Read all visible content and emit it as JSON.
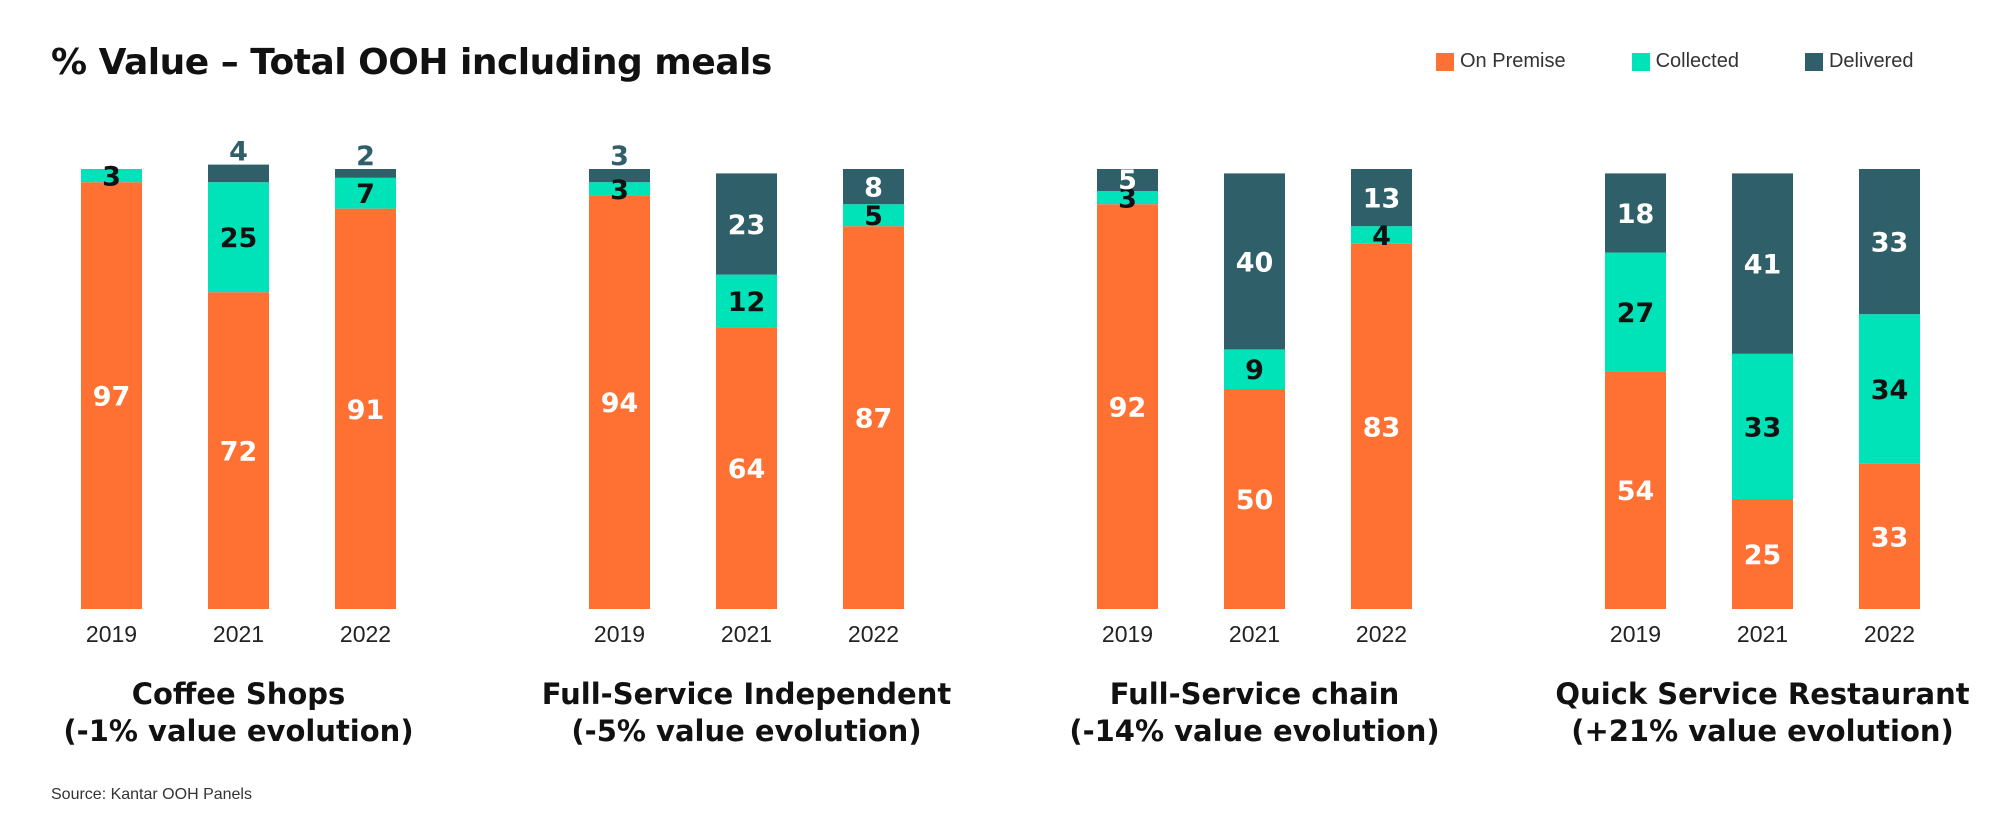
{
  "title": "% Value – Total OOH including meals",
  "source": "Source: Kantar OOH Panels",
  "colors": {
    "on_premise": "#FF7133",
    "collected": "#00E3B8",
    "delivered": "#2F5F68"
  },
  "legend": [
    {
      "label": "On Premise",
      "color": "#FF7133"
    },
    {
      "label": "Collected",
      "color": "#00E3B8"
    },
    {
      "label": "Delivered",
      "color": "#2F5F68"
    }
  ],
  "chart_data": {
    "type": "bar",
    "stacked": true,
    "title": "% Value – Total OOH including meals",
    "ylim": [
      0,
      100
    ],
    "series_names": [
      "On Premise",
      "Collected",
      "Delivered"
    ],
    "panels": [
      {
        "title_line1": "Coffee Shops",
        "title_line2": "(-1% value evolution)",
        "categories": [
          "2019",
          "2021",
          "2022"
        ],
        "series": [
          {
            "name": "On Premise",
            "values": [
              97,
              72,
              91
            ]
          },
          {
            "name": "Collected",
            "values": [
              3,
              25,
              7
            ]
          },
          {
            "name": "Delivered",
            "values": [
              0,
              4,
              2
            ]
          }
        ]
      },
      {
        "title_line1": "Full-Service Independent",
        "title_line2": "(-5% value evolution)",
        "categories": [
          "2019",
          "2021",
          "2022"
        ],
        "series": [
          {
            "name": "On Premise",
            "values": [
              94,
              64,
              87
            ]
          },
          {
            "name": "Collected",
            "values": [
              3,
              12,
              5
            ]
          },
          {
            "name": "Delivered",
            "values": [
              3,
              23,
              8
            ]
          }
        ]
      },
      {
        "title_line1": "Full-Service chain",
        "title_line2": "(-14% value evolution)",
        "categories": [
          "2019",
          "2021",
          "2022"
        ],
        "series": [
          {
            "name": "On Premise",
            "values": [
              92,
              50,
              83
            ]
          },
          {
            "name": "Collected",
            "values": [
              3,
              9,
              4
            ]
          },
          {
            "name": "Delivered",
            "values": [
              5,
              40,
              13
            ]
          }
        ]
      },
      {
        "title_line1": "Quick Service Restaurant",
        "title_line2": "(+21% value evolution)",
        "categories": [
          "2019",
          "2021",
          "2022"
        ],
        "series": [
          {
            "name": "On Premise",
            "values": [
              54,
              25,
              33
            ]
          },
          {
            "name": "Collected",
            "values": [
              27,
              33,
              34
            ]
          },
          {
            "name": "Delivered",
            "values": [
              18,
              41,
              33
            ]
          }
        ]
      }
    ]
  }
}
